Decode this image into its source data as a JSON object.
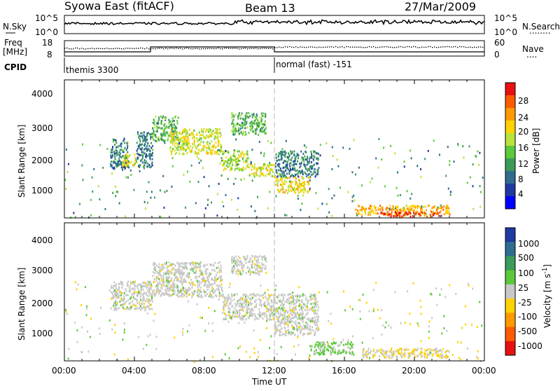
{
  "header": {
    "title": "Syowa East (fitACF)",
    "beam": "Beam 13",
    "date": "27/Mar/2009"
  },
  "noise_panel": {
    "left_label": "N.Sky",
    "right_label": "N.Search",
    "right_legend": "........",
    "left_ticks": [
      "10^5",
      "10^0"
    ],
    "right_ticks": [
      "10^5",
      "10^0"
    ]
  },
  "freq_panel": {
    "left_label_line1": "Freq",
    "left_label_line2": "[MHz]",
    "right_label": "Nave",
    "right_legend": "....",
    "left_ticks": [
      "18",
      "8"
    ],
    "right_ticks": [
      "60",
      "0"
    ]
  },
  "cpid_panel": {
    "label": "CPID",
    "mode_before": "themis 3300",
    "mode_after": "normal (fast) -151"
  },
  "axes": {
    "ylabel": "Slant Range [km]",
    "yticks": [
      "4000",
      "3000",
      "2000",
      "1000"
    ],
    "xticks": [
      "00:00",
      "04:00",
      "08:00",
      "12:00",
      "16:00",
      "20:00",
      "00:00"
    ],
    "xlabel": "Time UT"
  },
  "power_colorbar": {
    "label": "Power [dB]",
    "ticks": [
      "28",
      "24",
      "20",
      "16",
      "12",
      "8",
      "4"
    ],
    "colors": [
      "#e81010",
      "#ff5a00",
      "#ff9b00",
      "#ffd200",
      "#b9e23c",
      "#5cc83c",
      "#3c9a5a",
      "#2f6d8f",
      "#1f3aa0",
      "#0000ff"
    ]
  },
  "velocity_colorbar": {
    "label": "Velocity [m s",
    "label_sup": "-1",
    "label_end": "]",
    "ticks": [
      "1000",
      "500",
      "100",
      "25",
      "-25",
      "-100",
      "-500",
      "-1000"
    ],
    "colors": [
      "#1f3aa0",
      "#2f6d8f",
      "#3c9a5a",
      "#5cc83c",
      "#c8c8c8",
      "#ffd200",
      "#ff9b00",
      "#ff5a00",
      "#e81010"
    ]
  },
  "chart_data": [
    {
      "type": "heatmap",
      "title": "Power",
      "xlabel": "Time UT",
      "ylabel": "Slant Range [km]",
      "xlim": [
        0,
        24
      ],
      "ylim": [
        180,
        4500
      ],
      "colorbar": {
        "label": "Power [dB]",
        "range": [
          0,
          30
        ]
      },
      "regions": [
        {
          "t_start": 2.6,
          "t_end": 3.6,
          "range_start": 1750,
          "range_end": 2700,
          "value": 8
        },
        {
          "t_start": 3.3,
          "t_end": 4.1,
          "range_start": 1800,
          "range_end": 2200,
          "value": 18
        },
        {
          "t_start": 4.1,
          "t_end": 5.0,
          "range_start": 1800,
          "range_end": 2900,
          "value": 8
        },
        {
          "t_start": 5.0,
          "t_end": 6.5,
          "range_start": 2600,
          "range_end": 3400,
          "value": 12
        },
        {
          "t_start": 6.0,
          "t_end": 9.0,
          "range_start": 2200,
          "range_end": 3000,
          "value": 18
        },
        {
          "t_start": 9.0,
          "t_end": 10.5,
          "range_start": 1700,
          "range_end": 2300,
          "value": 16
        },
        {
          "t_start": 9.5,
          "t_end": 11.5,
          "range_start": 2800,
          "range_end": 3500,
          "value": 12
        },
        {
          "t_start": 10.5,
          "t_end": 12.0,
          "range_start": 1500,
          "range_end": 1900,
          "value": 18
        },
        {
          "t_start": 12.0,
          "t_end": 14.0,
          "range_start": 1000,
          "range_end": 1500,
          "value": 20
        },
        {
          "t_start": 12.0,
          "t_end": 14.5,
          "range_start": 1500,
          "range_end": 2300,
          "value": 8
        },
        {
          "t_start": 16.5,
          "t_end": 22.0,
          "range_start": 300,
          "range_end": 600,
          "value": 22
        },
        {
          "t_start": 18.0,
          "t_end": 21.5,
          "range_start": 250,
          "range_end": 400,
          "value": 28
        }
      ]
    },
    {
      "type": "heatmap",
      "title": "Velocity",
      "xlabel": "Time UT",
      "ylabel": "Slant Range [km]",
      "xlim": [
        0,
        24
      ],
      "ylim": [
        180,
        4500
      ],
      "colorbar": {
        "label": "Velocity [m s^-1]",
        "range": [
          -1000,
          1000
        ]
      },
      "regions": [
        {
          "t_start": 2.6,
          "t_end": 5.0,
          "range_start": 1800,
          "range_end": 2700,
          "value": 0
        },
        {
          "t_start": 5.0,
          "t_end": 9.0,
          "range_start": 2200,
          "range_end": 3300,
          "value": 0
        },
        {
          "t_start": 9.0,
          "t_end": 12.0,
          "range_start": 1500,
          "range_end": 2300,
          "value": 0
        },
        {
          "t_start": 9.5,
          "t_end": 11.5,
          "range_start": 2900,
          "range_end": 3500,
          "value": 0
        },
        {
          "t_start": 12.0,
          "t_end": 14.5,
          "range_start": 1000,
          "range_end": 2300,
          "value": 0
        },
        {
          "t_start": 14.0,
          "t_end": 16.5,
          "range_start": 400,
          "range_end": 800,
          "value": 200
        },
        {
          "t_start": 17.0,
          "t_end": 22.0,
          "range_start": 300,
          "range_end": 600,
          "value": -100
        }
      ]
    }
  ]
}
